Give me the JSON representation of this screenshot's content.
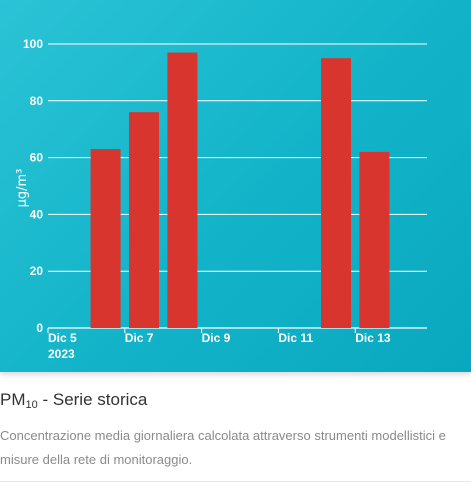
{
  "caption": {
    "title_main": "PM",
    "title_sub": "10",
    "title_rest": " - Serie storica",
    "description": "Concentrazione media giornaliera calcolata attraverso strumenti modellistici e misure della rete di monitoraggio."
  },
  "chart_data": {
    "type": "bar",
    "ylabel": "μg/m³",
    "ylim": [
      0,
      100
    ],
    "yticks": [
      0,
      20,
      40,
      60,
      80,
      100
    ],
    "grid": true,
    "x_start": 5,
    "x_end": 14,
    "xticks": [
      {
        "day": 5,
        "label": "Dic 5",
        "sublabel": "2023"
      },
      {
        "day": 7,
        "label": "Dic 7"
      },
      {
        "day": 9,
        "label": "Dic 9"
      },
      {
        "day": 11,
        "label": "Dic 11"
      },
      {
        "day": 13,
        "label": "Dic 13"
      }
    ],
    "categories": [
      "Dic 5",
      "Dic 6",
      "Dic 7",
      "Dic 8",
      "Dic 9",
      "Dic 10",
      "Dic 11",
      "Dic 12",
      "Dic 13"
    ],
    "days": [
      5,
      6,
      7,
      8,
      9,
      10,
      11,
      12,
      13
    ],
    "values": [
      null,
      63,
      76,
      97,
      null,
      null,
      null,
      95,
      62
    ],
    "colors": {
      "bar": "#d8352e",
      "grid": "#ffffff",
      "axis_text": "#ffffff"
    }
  }
}
